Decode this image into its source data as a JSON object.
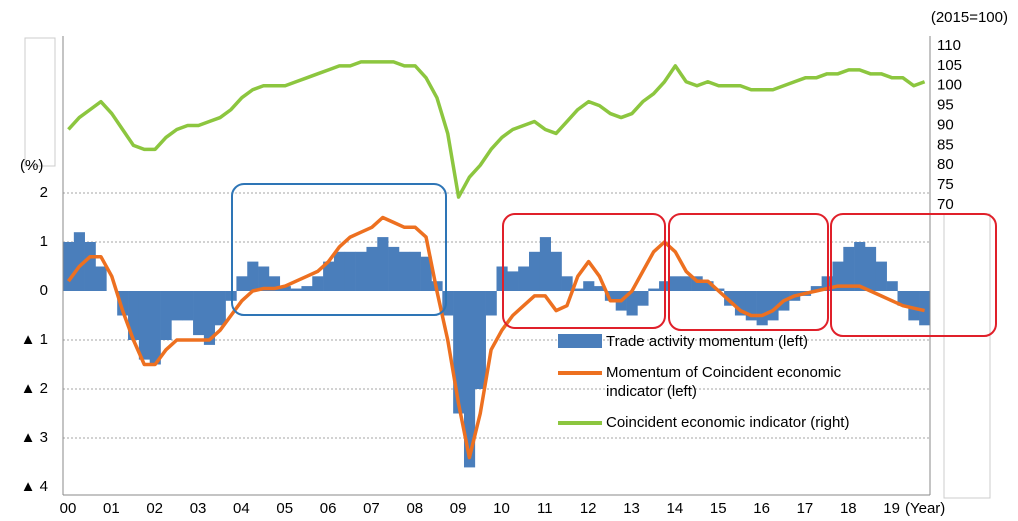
{
  "chart_data": {
    "type": "bar-line-combo",
    "y_unit": "(%)",
    "y2_unit": "(2015=100)",
    "x_label": "(Year)",
    "x": [
      0,
      0.25,
      0.5,
      0.75,
      1,
      1.25,
      1.5,
      1.75,
      2,
      2.25,
      2.5,
      2.75,
      3,
      3.25,
      3.5,
      3.75,
      4,
      4.25,
      4.5,
      4.75,
      5,
      5.25,
      5.5,
      5.75,
      6,
      6.25,
      6.5,
      6.75,
      7,
      7.25,
      7.5,
      7.75,
      8,
      8.25,
      8.5,
      8.75,
      9,
      9.25,
      9.5,
      9.75,
      10,
      10.25,
      10.5,
      10.75,
      11,
      11.25,
      11.5,
      11.75,
      12,
      12.25,
      12.5,
      12.75,
      13,
      13.25,
      13.5,
      13.75,
      14,
      14.25,
      14.5,
      14.75,
      15,
      15.25,
      15.5,
      15.75,
      16,
      16.25,
      16.5,
      16.75,
      17,
      17.25,
      17.5,
      17.75,
      18,
      18.25,
      18.5,
      18.75,
      19,
      19.25,
      19.5,
      19.75
    ],
    "xlim": [
      0,
      20
    ],
    "xticks": [
      {
        "value": 0,
        "label": "00"
      },
      {
        "value": 1,
        "label": "01"
      },
      {
        "value": 2,
        "label": "02"
      },
      {
        "value": 3,
        "label": "03"
      },
      {
        "value": 4,
        "label": "04"
      },
      {
        "value": 5,
        "label": "05"
      },
      {
        "value": 6,
        "label": "06"
      },
      {
        "value": 7,
        "label": "07"
      },
      {
        "value": 8,
        "label": "08"
      },
      {
        "value": 9,
        "label": "09"
      },
      {
        "value": 10,
        "label": "10"
      },
      {
        "value": 11,
        "label": "11"
      },
      {
        "value": 12,
        "label": "12"
      },
      {
        "value": 13,
        "label": "13"
      },
      {
        "value": 14,
        "label": "14"
      },
      {
        "value": 15,
        "label": "15"
      },
      {
        "value": 16,
        "label": "16"
      },
      {
        "value": 17,
        "label": "17"
      },
      {
        "value": 18,
        "label": "18"
      },
      {
        "value": 19,
        "label": "19"
      }
    ],
    "ylim": [
      -4,
      2
    ],
    "yticks": [
      {
        "value": -4,
        "label": "▲ 4"
      },
      {
        "value": -3,
        "label": "▲ 3"
      },
      {
        "value": -2,
        "label": "▲ 2"
      },
      {
        "value": -1,
        "label": "▲ 1"
      },
      0,
      1,
      2
    ],
    "y2lim": [
      70,
      110
    ],
    "y2ticks": [
      70,
      75,
      80,
      85,
      90,
      95,
      100,
      105,
      110
    ],
    "grid": true,
    "series": [
      {
        "name": "Trade activity momentum (left)",
        "kind": "bar",
        "color": "#4a7ebb",
        "values": [
          1.0,
          1.2,
          1.0,
          0.5,
          0.0,
          -0.5,
          -1.0,
          -1.4,
          -1.5,
          -1.0,
          -0.6,
          -0.6,
          -0.9,
          -1.1,
          -0.7,
          -0.2,
          0.3,
          0.6,
          0.5,
          0.3,
          0.1,
          0.05,
          0.1,
          0.3,
          0.6,
          0.8,
          0.8,
          0.8,
          0.9,
          1.1,
          0.9,
          0.8,
          0.8,
          0.7,
          0.2,
          -0.5,
          -2.5,
          -3.6,
          -2.0,
          -0.5,
          0.5,
          0.4,
          0.5,
          0.8,
          1.1,
          0.8,
          0.3,
          0.05,
          0.2,
          0.1,
          -0.2,
          -0.4,
          -0.5,
          -0.3,
          0.05,
          0.2,
          0.3,
          0.3,
          0.3,
          0.2,
          0.05,
          -0.3,
          -0.5,
          -0.6,
          -0.7,
          -0.6,
          -0.4,
          -0.2,
          -0.1,
          0.1,
          0.3,
          0.6,
          0.9,
          1.0,
          0.9,
          0.6,
          0.2,
          -0.3,
          -0.6,
          -0.7
        ]
      },
      {
        "name": "Momentum of Coincident economic indicator (left)",
        "kind": "line",
        "color": "#ed7020",
        "values": [
          0.2,
          0.5,
          0.7,
          0.7,
          0.3,
          -0.4,
          -1.0,
          -1.5,
          -1.5,
          -1.2,
          -1.0,
          -1.0,
          -1.0,
          -1.0,
          -0.8,
          -0.5,
          -0.2,
          0.0,
          0.05,
          0.05,
          0.1,
          0.2,
          0.3,
          0.4,
          0.6,
          0.9,
          1.1,
          1.2,
          1.3,
          1.5,
          1.4,
          1.3,
          1.3,
          1.1,
          0.0,
          -1.0,
          -2.3,
          -3.4,
          -2.5,
          -1.2,
          -0.8,
          -0.5,
          -0.3,
          -0.1,
          -0.1,
          -0.4,
          -0.3,
          0.3,
          0.6,
          0.3,
          -0.2,
          -0.2,
          0.0,
          0.4,
          0.8,
          1.0,
          0.8,
          0.4,
          0.2,
          0.2,
          0.0,
          -0.2,
          -0.4,
          -0.5,
          -0.5,
          -0.4,
          -0.2,
          -0.1,
          -0.05,
          0.0,
          0.05,
          0.1,
          0.1,
          0.1,
          0.0,
          -0.1,
          -0.2,
          -0.3,
          -0.35,
          -0.4
        ]
      },
      {
        "name": "Coincident economic indicator (right)",
        "kind": "line",
        "axis": "y2",
        "color": "#8cc63f",
        "values": [
          89,
          92,
          94,
          96,
          93,
          89,
          85,
          84,
          84,
          87,
          89,
          90,
          90,
          91,
          92,
          94,
          97,
          99,
          100,
          100,
          100,
          101,
          102,
          103,
          104,
          105,
          105,
          106,
          106,
          106,
          106,
          105,
          105,
          102,
          97,
          88,
          72,
          77,
          80,
          84,
          87,
          89,
          90,
          91,
          89,
          88,
          91,
          94,
          96,
          95,
          93,
          92,
          93,
          96,
          98,
          101,
          105,
          101,
          100,
          101,
          100,
          100,
          100,
          99,
          99,
          99,
          100,
          101,
          102,
          102,
          103,
          103,
          104,
          104,
          103,
          103,
          102,
          102,
          100,
          101
        ]
      }
    ]
  }
}
